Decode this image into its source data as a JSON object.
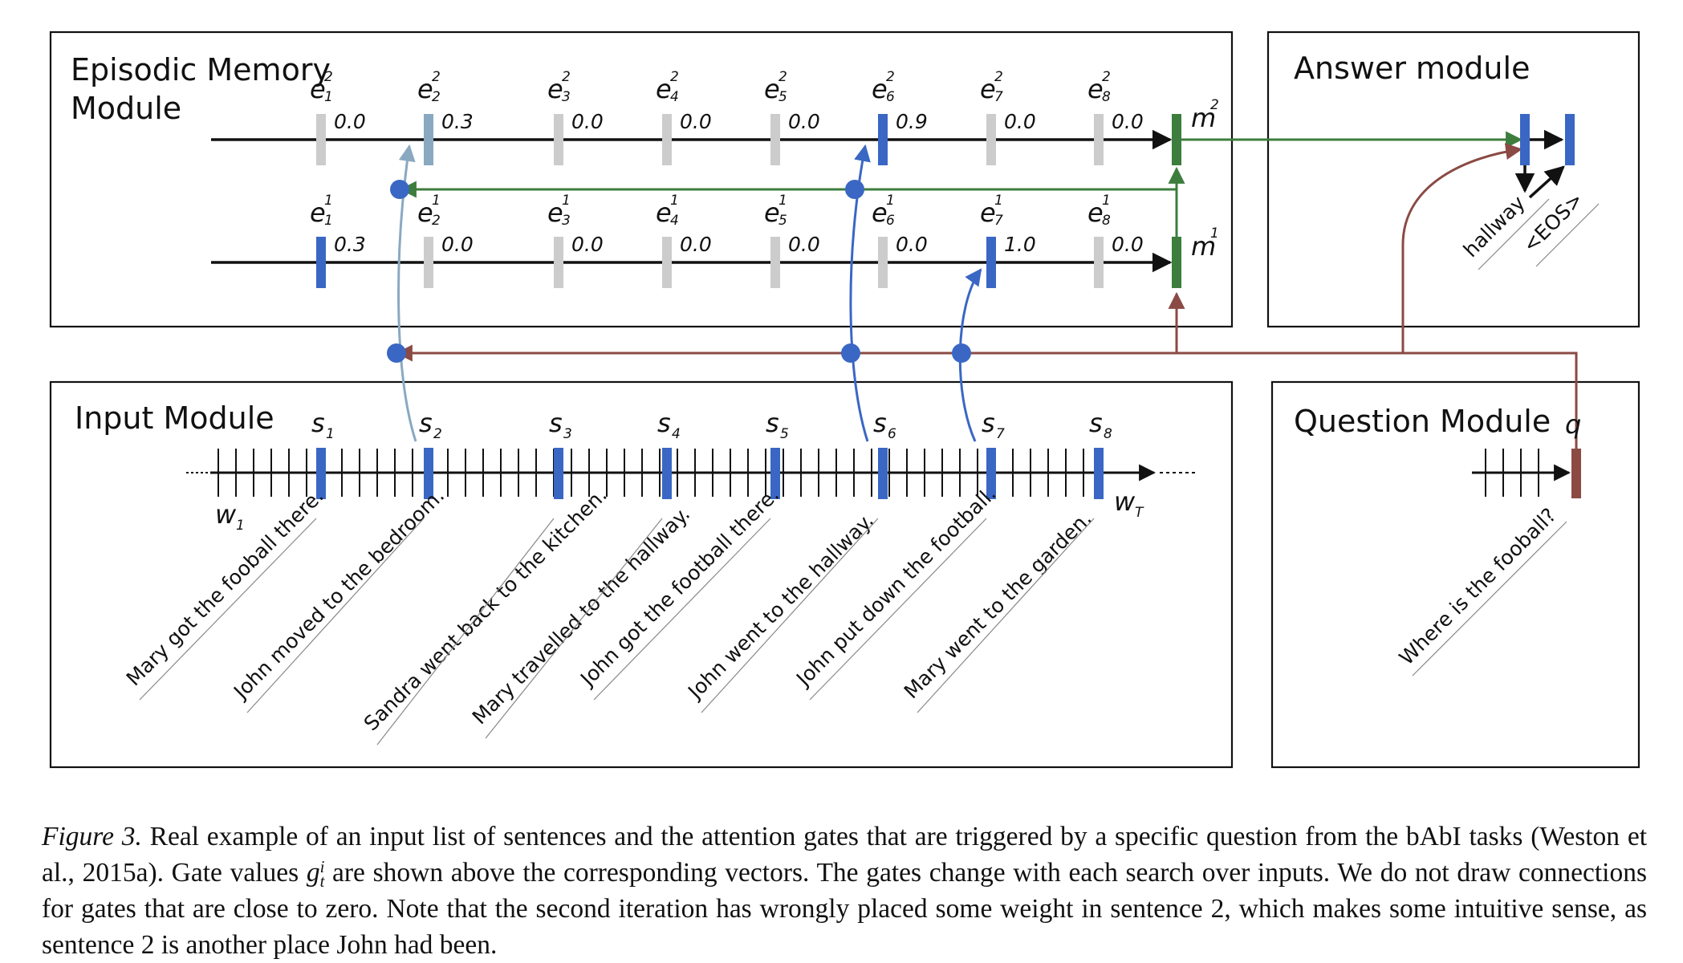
{
  "modules": {
    "episodic": {
      "title_line1": "Episodic Memory",
      "title_line2": "Module"
    },
    "answer": {
      "title": "Answer module"
    },
    "input": {
      "title": "Input Module"
    },
    "question": {
      "title": "Question Module"
    }
  },
  "pass2": {
    "gates": [
      "0.0",
      "0.3",
      "0.0",
      "0.0",
      "0.0",
      "0.9",
      "0.0",
      "0.0"
    ],
    "memory_symbol": "m",
    "memory_sup": "2"
  },
  "pass1": {
    "gates": [
      "0.3",
      "0.0",
      "0.0",
      "0.0",
      "0.0",
      "0.0",
      "1.0",
      "0.0"
    ],
    "memory_symbol": "m",
    "memory_sup": "1"
  },
  "episode_symbol": "e",
  "sentence_symbol": "s",
  "indices": [
    "1",
    "2",
    "3",
    "4",
    "5",
    "6",
    "7",
    "8"
  ],
  "words": {
    "first": "w",
    "first_sub": "1",
    "last": "w",
    "last_sub": "T"
  },
  "sentences": [
    "Mary got the fooball there.",
    "John moved to the bedroom.",
    "Sandra went back to the kitchen.",
    "Mary travelled to the hallway.",
    "John got the football there.",
    "John went to the hallway.",
    "John put down the football.",
    "Mary went to the garden."
  ],
  "question": {
    "symbol": "q",
    "text": "Where is the fooball?"
  },
  "answer": {
    "words": [
      "hallway",
      "<EOS>"
    ]
  },
  "colors": {
    "green": "#3d7d3d",
    "blue": "#3a67c4",
    "light_blue": "#8aa9c1",
    "brown": "#8b4a44",
    "gray": "#cccccc",
    "black": "#111111"
  },
  "caption": {
    "label": "Figure 3.",
    "text": "Real example of an input list of sentences and the attention gates that are triggered by a specific question from the bAbI tasks (Weston et al., 2015a). Gate values g_t^i are shown above the corresponding vectors. The gates change with each search over inputs. We do not draw connections for gates that are close to zero. Note that the second iteration has wrongly placed some weight in sentence 2, which makes some intuitive sense, as sentence 2 is another place John had been."
  }
}
